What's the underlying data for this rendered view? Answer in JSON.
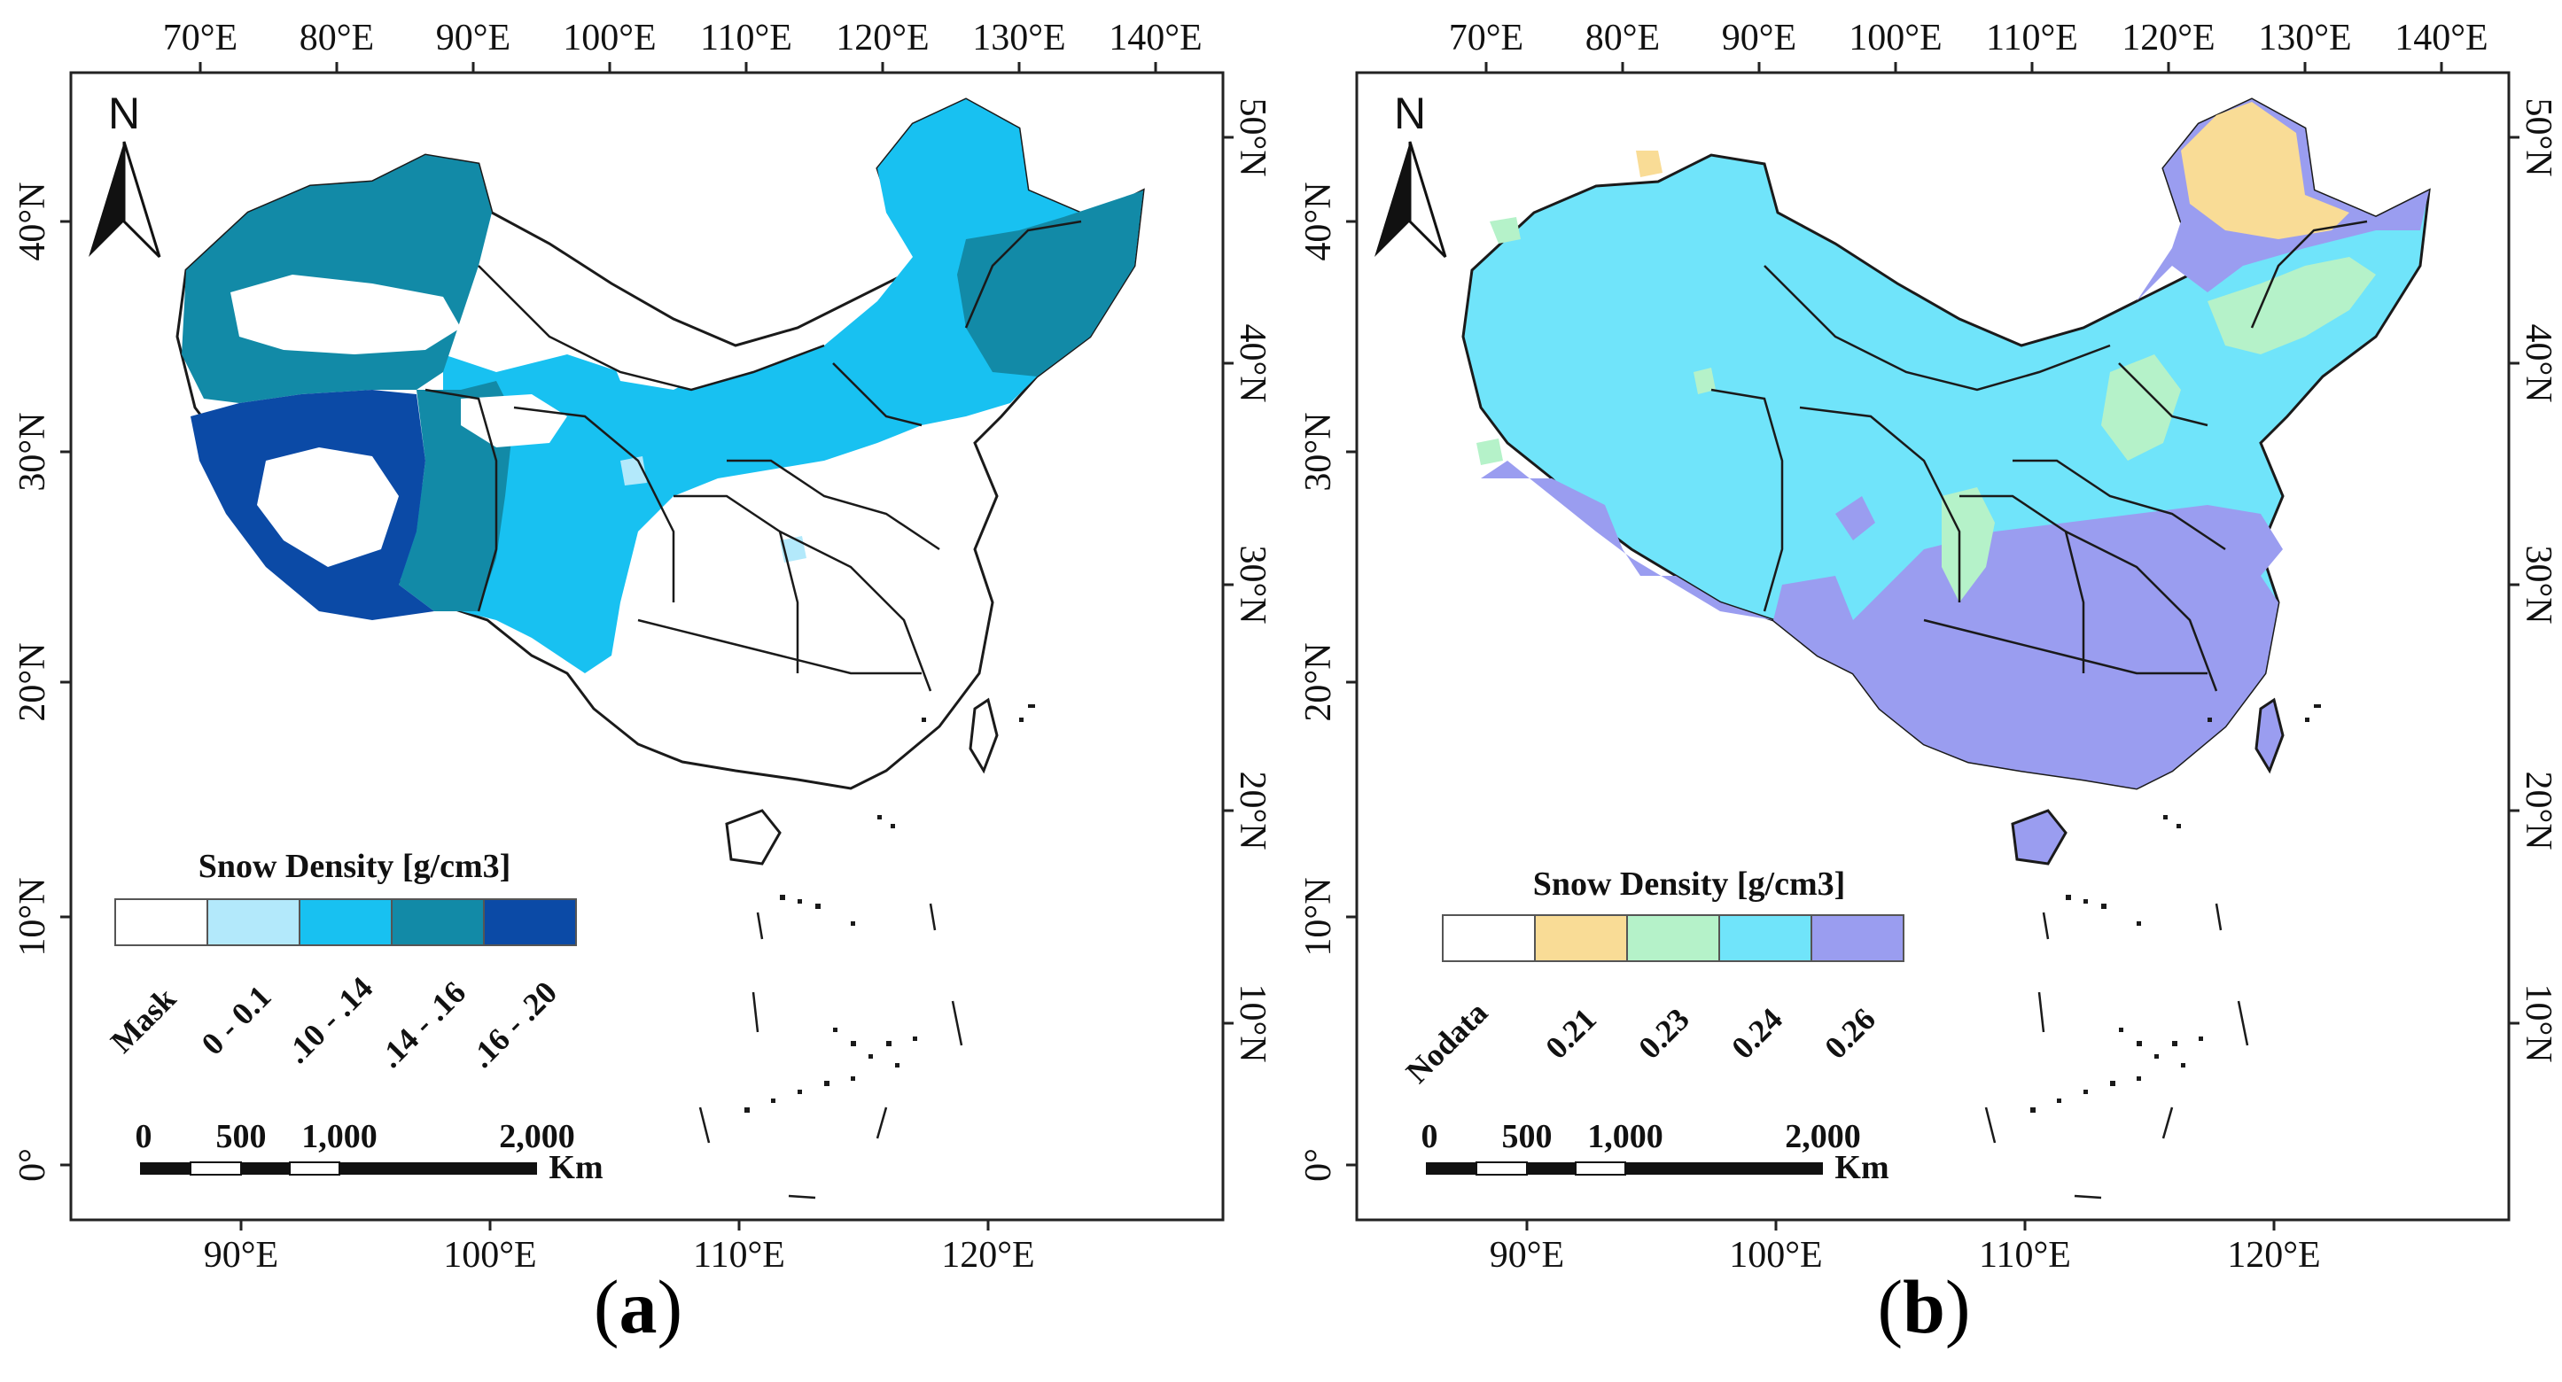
{
  "panel_a": {
    "label": "a",
    "top_ticks": [
      "70°E",
      "80°E",
      "90°E",
      "100°E",
      "110°E",
      "120°E",
      "130°E",
      "140°E"
    ],
    "bottom_ticks": [
      "90°E",
      "100°E",
      "110°E",
      "120°E"
    ],
    "left_ticks": [
      "40°N",
      "30°N",
      "20°N",
      "10°N",
      "0°"
    ],
    "right_ticks": [
      "50°N",
      "40°N",
      "30°N",
      "20°N",
      "10°N"
    ],
    "north": "N",
    "legend": {
      "title": "Snow Density [g/cm3]",
      "classes": [
        {
          "label": "Mask",
          "color": "#ffffff"
        },
        {
          "label": "0 - 0.1",
          "color": "#b3e9fb"
        },
        {
          "label": ".10 - .14",
          "color": "#18c1f1"
        },
        {
          "label": ".14 - .16",
          "color": "#128aa7"
        },
        {
          "label": ".16 - .20",
          "color": "#0b4aa6"
        }
      ]
    },
    "scale": {
      "labels": [
        "0",
        "500",
        "1,000",
        "2,000"
      ],
      "unit": "Km"
    }
  },
  "panel_b": {
    "label": "b",
    "top_ticks": [
      "70°E",
      "80°E",
      "90°E",
      "100°E",
      "110°E",
      "120°E",
      "130°E",
      "140°E"
    ],
    "bottom_ticks": [
      "90°E",
      "100°E",
      "110°E",
      "120°E"
    ],
    "left_ticks": [
      "40°N",
      "30°N",
      "20°N",
      "10°N",
      "0°"
    ],
    "right_ticks": [
      "50°N",
      "40°N",
      "30°N",
      "20°N",
      "10°N"
    ],
    "north": "N",
    "legend": {
      "title": "Snow Density [g/cm3]",
      "classes": [
        {
          "label": "Nodata",
          "color": "#ffffff"
        },
        {
          "label": "0.21",
          "color": "#f9dc96"
        },
        {
          "label": "0.23",
          "color": "#b5f2c9"
        },
        {
          "label": "0.24",
          "color": "#70e4fa"
        },
        {
          "label": "0.26",
          "color": "#9a9df0"
        }
      ]
    },
    "scale": {
      "labels": [
        "0",
        "500",
        "1,000",
        "2,000"
      ],
      "unit": "Km"
    }
  }
}
